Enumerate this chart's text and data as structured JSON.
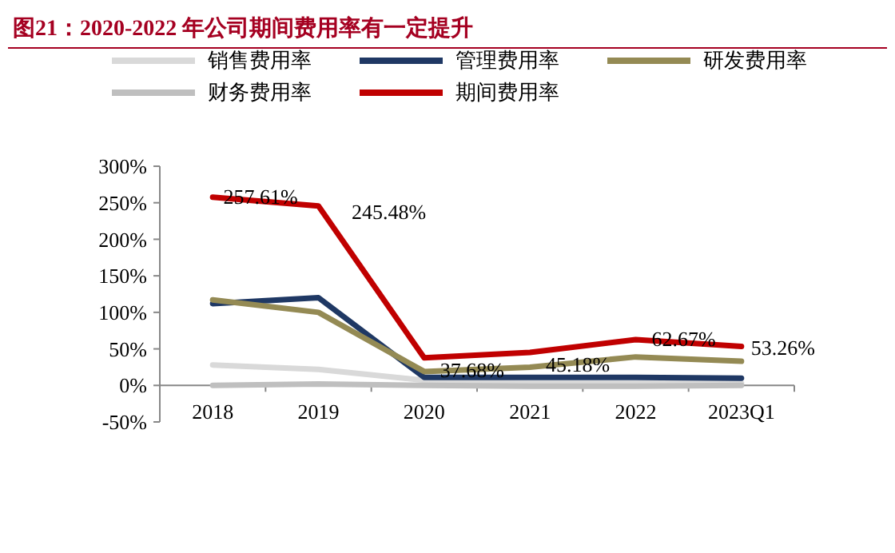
{
  "chart_data": {
    "type": "line",
    "title": "图21：2020-2022 年公司期间费用率有一定提升",
    "categories": [
      "2018",
      "2019",
      "2020",
      "2021",
      "2022",
      "2023Q1"
    ],
    "series": [
      {
        "name": "销售费用率",
        "color": "#d9d9d9",
        "values": [
          28,
          22,
          7,
          3,
          3,
          3
        ]
      },
      {
        "name": "管理费用率",
        "color": "#1f3864",
        "values": [
          112,
          120,
          11,
          11,
          11,
          10
        ]
      },
      {
        "name": "研发费用率",
        "color": "#948a54",
        "values": [
          117,
          100,
          19,
          25,
          39,
          33
        ]
      },
      {
        "name": "财务费用率",
        "color": "#bfbfbf",
        "values": [
          0,
          2,
          0,
          -1,
          -1,
          0
        ]
      },
      {
        "name": "期间费用率",
        "color": "#c00000",
        "values": [
          257.61,
          245.48,
          37.68,
          45.18,
          62.67,
          53.26
        ],
        "value_labels": [
          "257.61%",
          "245.48%",
          "37.68%",
          "45.18%",
          "62.67%",
          "53.26%"
        ]
      }
    ],
    "ylim": [
      -50,
      300
    ],
    "yticks": [
      {
        "value": -50,
        "label": "-50%"
      },
      {
        "value": 0,
        "label": "0%"
      },
      {
        "value": 50,
        "label": "50%"
      },
      {
        "value": 100,
        "label": "100%"
      },
      {
        "value": 150,
        "label": "150%"
      },
      {
        "value": 200,
        "label": "200%"
      },
      {
        "value": 250,
        "label": "250%"
      },
      {
        "value": 300,
        "label": "300%"
      }
    ],
    "legend": "top",
    "grid": false,
    "marker": "none",
    "line_style": "solid"
  }
}
